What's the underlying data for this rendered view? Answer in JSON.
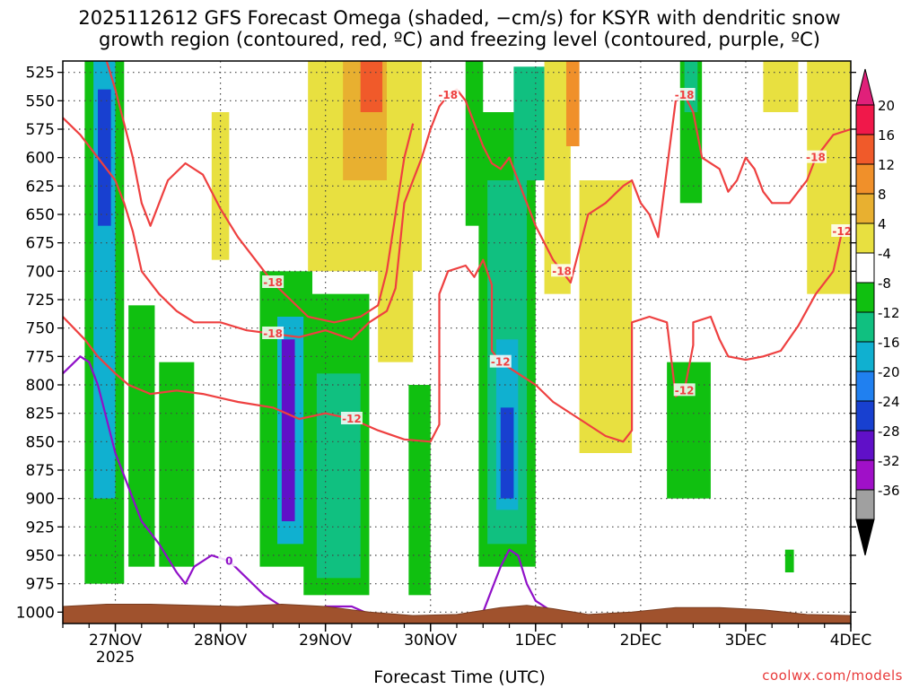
{
  "chart_data": {
    "type": "heatmap",
    "title_lines": [
      "2025112612 GFS Forecast Omega (shaded, −cm/s) for KSYR with dendritic snow",
      "growth region (contoured, red, ºC) and freezing level (contoured, purple, ºC)"
    ],
    "xlabel": "Forecast Time (UTC)",
    "credit": "coolwx.com/models",
    "y_axis": {
      "units": "hPa",
      "inverted": true,
      "range": [
        515,
        1010
      ],
      "ticks": [
        525,
        550,
        575,
        600,
        625,
        650,
        675,
        700,
        725,
        750,
        775,
        800,
        825,
        850,
        875,
        900,
        925,
        950,
        975,
        1000
      ]
    },
    "x_axis": {
      "units": "hours since 2025-11-26 12 UTC",
      "range": [
        0,
        180
      ],
      "ticks": [
        {
          "t": 12,
          "label": "27NOV",
          "sub": "2025"
        },
        {
          "t": 36,
          "label": "28NOV",
          "sub": ""
        },
        {
          "t": 60,
          "label": "29NOV",
          "sub": ""
        },
        {
          "t": 84,
          "label": "30NOV",
          "sub": ""
        },
        {
          "t": 108,
          "label": "1DEC",
          "sub": ""
        },
        {
          "t": 132,
          "label": "2DEC",
          "sub": ""
        },
        {
          "t": 156,
          "label": "3DEC",
          "sub": ""
        },
        {
          "t": 180,
          "label": "4DEC",
          "sub": ""
        }
      ]
    },
    "colorbar": {
      "labels": [
        "20",
        "16",
        "12",
        "8",
        "4",
        "-4",
        "-8",
        "-12",
        "-16",
        "-20",
        "-24",
        "-28",
        "-32",
        "-36"
      ],
      "colors": [
        "#f0184a",
        "#f05a2a",
        "#f0902a",
        "#e8b030",
        "#e8e040",
        "#ffffff",
        "#10c010",
        "#10c080",
        "#10b0d0",
        "#2080f0",
        "#1840d0",
        "#6010c8",
        "#a010c8",
        "#a0a0a0"
      ],
      "top_arrow_color": "#e0207a",
      "bottom_arrow_color": "#000000"
    },
    "omega_shading": [
      {
        "t0": 5,
        "t1": 14,
        "p0": 515,
        "p1": 975,
        "value": -8
      },
      {
        "t0": 7,
        "t1": 12,
        "p0": 515,
        "p1": 900,
        "value": -16
      },
      {
        "t0": 8,
        "t1": 11,
        "p0": 540,
        "p1": 660,
        "value": -24
      },
      {
        "t0": 15,
        "t1": 21,
        "p0": 730,
        "p1": 960,
        "value": -8
      },
      {
        "t0": 22,
        "t1": 30,
        "p0": 780,
        "p1": 960,
        "value": -8
      },
      {
        "t0": 34,
        "t1": 38,
        "p0": 560,
        "p1": 690,
        "value": 4
      },
      {
        "t0": 45,
        "t1": 57,
        "p0": 700,
        "p1": 960,
        "value": -8
      },
      {
        "t0": 49,
        "t1": 55,
        "p0": 740,
        "p1": 940,
        "value": -16
      },
      {
        "t0": 50,
        "t1": 53,
        "p0": 760,
        "p1": 920,
        "value": -28
      },
      {
        "t0": 55,
        "t1": 70,
        "p0": 720,
        "p1": 985,
        "value": -8
      },
      {
        "t0": 58,
        "t1": 68,
        "p0": 790,
        "p1": 970,
        "value": -12
      },
      {
        "t0": 56,
        "t1": 82,
        "p0": 515,
        "p1": 700,
        "value": 4
      },
      {
        "t0": 64,
        "t1": 74,
        "p0": 515,
        "p1": 620,
        "value": 8
      },
      {
        "t0": 68,
        "t1": 73,
        "p0": 515,
        "p1": 560,
        "value": 16
      },
      {
        "t0": 72,
        "t1": 80,
        "p0": 640,
        "p1": 780,
        "value": 4
      },
      {
        "t0": 79,
        "t1": 84,
        "p0": 800,
        "p1": 985,
        "value": -8
      },
      {
        "t0": 92,
        "t1": 96,
        "p0": 515,
        "p1": 660,
        "value": -8
      },
      {
        "t0": 95,
        "t1": 108,
        "p0": 560,
        "p1": 960,
        "value": -8
      },
      {
        "t0": 97,
        "t1": 106,
        "p0": 620,
        "p1": 940,
        "value": -12
      },
      {
        "t0": 99,
        "t1": 104,
        "p0": 760,
        "p1": 910,
        "value": -16
      },
      {
        "t0": 100,
        "t1": 103,
        "p0": 820,
        "p1": 900,
        "value": -24
      },
      {
        "t0": 103,
        "t1": 110,
        "p0": 520,
        "p1": 620,
        "value": -12
      },
      {
        "t0": 110,
        "t1": 116,
        "p0": 515,
        "p1": 720,
        "value": 4
      },
      {
        "t0": 115,
        "t1": 118,
        "p0": 515,
        "p1": 590,
        "value": 12
      },
      {
        "t0": 118,
        "t1": 130,
        "p0": 620,
        "p1": 860,
        "value": 4
      },
      {
        "t0": 138,
        "t1": 148,
        "p0": 780,
        "p1": 900,
        "value": -8
      },
      {
        "t0": 141,
        "t1": 146,
        "p0": 515,
        "p1": 640,
        "value": -8
      },
      {
        "t0": 142,
        "t1": 145,
        "p0": 515,
        "p1": 560,
        "value": -12
      },
      {
        "t0": 160,
        "t1": 168,
        "p0": 515,
        "p1": 560,
        "value": 4
      },
      {
        "t0": 170,
        "t1": 180,
        "p0": 515,
        "p1": 720,
        "value": 4
      },
      {
        "t0": 165,
        "t1": 167,
        "p0": 945,
        "p1": 965,
        "value": -8
      }
    ],
    "dgz_contours": [
      {
        "label": "-12",
        "points": [
          [
            0,
            740
          ],
          [
            5,
            760
          ],
          [
            8,
            775
          ],
          [
            12,
            790
          ],
          [
            15,
            800
          ],
          [
            20,
            808
          ],
          [
            26,
            805
          ],
          [
            32,
            808
          ],
          [
            40,
            815
          ],
          [
            48,
            820
          ],
          [
            54,
            830
          ],
          [
            60,
            825
          ],
          [
            66,
            830
          ],
          [
            72,
            840
          ],
          [
            78,
            848
          ],
          [
            84,
            850
          ],
          [
            86,
            835
          ],
          [
            86,
            720
          ],
          [
            88,
            700
          ],
          [
            92,
            695
          ],
          [
            94,
            705
          ],
          [
            96,
            690
          ],
          [
            98,
            712
          ],
          [
            98,
            770
          ],
          [
            100,
            780
          ],
          [
            104,
            790
          ],
          [
            108,
            800
          ],
          [
            112,
            815
          ],
          [
            118,
            830
          ],
          [
            124,
            845
          ],
          [
            128,
            850
          ],
          [
            130,
            840
          ],
          [
            130,
            745
          ],
          [
            134,
            740
          ],
          [
            138,
            745
          ],
          [
            140,
            810
          ],
          [
            142,
            805
          ],
          [
            144,
            765
          ],
          [
            144,
            745
          ],
          [
            148,
            740
          ],
          [
            150,
            760
          ],
          [
            152,
            775
          ],
          [
            156,
            778
          ],
          [
            160,
            775
          ],
          [
            164,
            770
          ],
          [
            168,
            748
          ],
          [
            172,
            720
          ],
          [
            176,
            700
          ],
          [
            178,
            665
          ],
          [
            180,
            660
          ]
        ]
      },
      {
        "label": "-18",
        "points": [
          [
            0,
            565
          ],
          [
            4,
            580
          ],
          [
            8,
            600
          ],
          [
            12,
            620
          ],
          [
            14,
            640
          ],
          [
            16,
            665
          ],
          [
            18,
            700
          ],
          [
            22,
            720
          ],
          [
            26,
            735
          ],
          [
            30,
            745
          ],
          [
            36,
            745
          ],
          [
            42,
            752
          ],
          [
            48,
            755
          ],
          [
            54,
            758
          ],
          [
            60,
            752
          ],
          [
            66,
            760
          ],
          [
            70,
            745
          ],
          [
            74,
            735
          ],
          [
            76,
            715
          ],
          [
            78,
            640
          ],
          [
            80,
            620
          ],
          [
            82,
            600
          ],
          [
            84,
            575
          ],
          [
            86,
            555
          ],
          [
            88,
            545
          ],
          [
            90,
            540
          ],
          [
            92,
            550
          ],
          [
            94,
            570
          ],
          [
            96,
            590
          ],
          [
            98,
            605
          ],
          [
            100,
            610
          ],
          [
            102,
            600
          ],
          [
            104,
            620
          ],
          [
            106,
            640
          ],
          [
            108,
            660
          ],
          [
            112,
            690
          ],
          [
            114,
            700
          ],
          [
            116,
            710
          ],
          [
            118,
            680
          ],
          [
            120,
            650
          ],
          [
            124,
            640
          ],
          [
            128,
            625
          ],
          [
            130,
            620
          ],
          [
            132,
            640
          ],
          [
            134,
            650
          ],
          [
            136,
            670
          ],
          [
            138,
            610
          ],
          [
            140,
            550
          ],
          [
            142,
            545
          ],
          [
            144,
            560
          ],
          [
            146,
            600
          ],
          [
            150,
            610
          ],
          [
            152,
            630
          ],
          [
            154,
            620
          ],
          [
            156,
            600
          ],
          [
            158,
            610
          ],
          [
            160,
            630
          ],
          [
            162,
            640
          ],
          [
            166,
            640
          ],
          [
            170,
            620
          ],
          [
            172,
            600
          ],
          [
            176,
            580
          ],
          [
            180,
            575
          ]
        ]
      },
      {
        "label": "-18",
        "points": [
          [
            10,
            515
          ],
          [
            12,
            540
          ],
          [
            14,
            570
          ],
          [
            16,
            600
          ],
          [
            18,
            640
          ],
          [
            20,
            660
          ],
          [
            24,
            620
          ],
          [
            28,
            605
          ],
          [
            32,
            615
          ],
          [
            36,
            645
          ],
          [
            40,
            670
          ],
          [
            44,
            690
          ],
          [
            48,
            710
          ],
          [
            52,
            725
          ],
          [
            56,
            740
          ],
          [
            62,
            745
          ],
          [
            68,
            740
          ],
          [
            72,
            730
          ],
          [
            74,
            700
          ],
          [
            76,
            650
          ],
          [
            78,
            600
          ],
          [
            80,
            570
          ]
        ]
      }
    ],
    "freezing_level_contours": [
      {
        "label": "0",
        "points": [
          [
            0,
            790
          ],
          [
            4,
            775
          ],
          [
            6,
            780
          ],
          [
            8,
            800
          ],
          [
            10,
            830
          ],
          [
            12,
            860
          ],
          [
            14,
            880
          ],
          [
            16,
            900
          ],
          [
            18,
            920
          ],
          [
            22,
            940
          ],
          [
            26,
            965
          ],
          [
            28,
            975
          ],
          [
            30,
            960
          ],
          [
            34,
            950
          ],
          [
            38,
            955
          ],
          [
            42,
            970
          ],
          [
            46,
            985
          ],
          [
            50,
            995
          ],
          [
            56,
            1000
          ],
          [
            60,
            995
          ],
          [
            66,
            995
          ],
          [
            72,
            1005
          ],
          [
            76,
            1008
          ]
        ]
      },
      {
        "label": "0",
        "points": [
          [
            96,
            1000
          ],
          [
            98,
            980
          ],
          [
            100,
            960
          ],
          [
            102,
            945
          ],
          [
            104,
            950
          ],
          [
            106,
            975
          ],
          [
            108,
            990
          ],
          [
            112,
            1000
          ]
        ]
      }
    ],
    "terrain": [
      [
        0,
        995
      ],
      [
        10,
        993
      ],
      [
        20,
        993
      ],
      [
        30,
        994
      ],
      [
        40,
        995
      ],
      [
        50,
        993
      ],
      [
        60,
        995
      ],
      [
        70,
        1000
      ],
      [
        80,
        1003
      ],
      [
        90,
        1002
      ],
      [
        100,
        996
      ],
      [
        106,
        994
      ],
      [
        112,
        997
      ],
      [
        120,
        1002
      ],
      [
        130,
        1000
      ],
      [
        140,
        996
      ],
      [
        150,
        996
      ],
      [
        160,
        998
      ],
      [
        170,
        1002
      ],
      [
        180,
        1003
      ]
    ]
  }
}
